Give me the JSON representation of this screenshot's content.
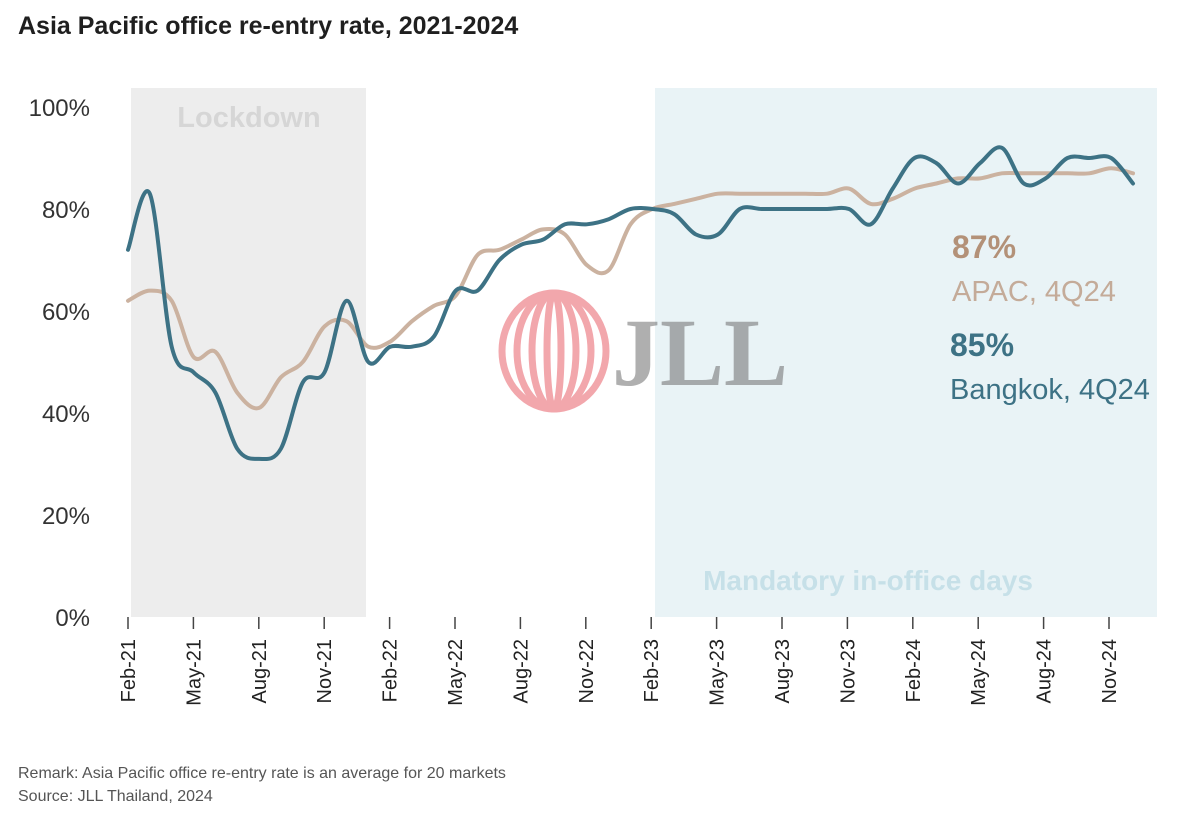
{
  "title": "Asia Pacific office re-entry rate, 2021-2024",
  "remark": "Remark: Asia Pacific office re-entry rate is an average for 20 markets",
  "source": "Source: JLL Thailand, 2024",
  "watermark": "JLL",
  "chart_data": {
    "type": "line",
    "ylim": [
      0,
      100
    ],
    "y_ticks": [
      "0%",
      "20%",
      "40%",
      "60%",
      "80%",
      "100%"
    ],
    "y_tick_values": [
      0,
      20,
      40,
      60,
      80,
      100
    ],
    "x_tick_labels": [
      "Feb-21",
      "May-21",
      "Aug-21",
      "Nov-21",
      "Feb-22",
      "May-22",
      "Aug-22",
      "Nov-22",
      "Feb-23",
      "May-23",
      "Aug-23",
      "Nov-23",
      "Feb-24",
      "May-24",
      "Aug-24",
      "Nov-24"
    ],
    "x_range": [
      "2021-02",
      "2024-12"
    ],
    "grid": false,
    "regions": [
      {
        "label": "Lockdown",
        "start": "2021-02",
        "end": "2022-01",
        "color": "#ededed",
        "label_color": "#d6d6d6"
      },
      {
        "label": "Mandatory in-office days",
        "start": "2023-02",
        "end": "2024-12",
        "color": "#e9f3f6",
        "label_color": "#c6e0e8"
      }
    ],
    "series": [
      {
        "name": "APAC",
        "color": "#cbb2a0",
        "x": [
          "2021-02",
          "2021-03",
          "2021-04",
          "2021-05",
          "2021-06",
          "2021-07",
          "2021-08",
          "2021-09",
          "2021-10",
          "2021-11",
          "2021-12",
          "2022-01",
          "2022-02",
          "2022-03",
          "2022-04",
          "2022-05",
          "2022-06",
          "2022-07",
          "2022-08",
          "2022-09",
          "2022-10",
          "2022-11",
          "2022-12",
          "2023-01",
          "2023-02",
          "2023-03",
          "2023-04",
          "2023-05",
          "2023-06",
          "2023-07",
          "2023-08",
          "2023-09",
          "2023-10",
          "2023-11",
          "2023-12",
          "2024-01",
          "2024-02",
          "2024-03",
          "2024-04",
          "2024-05",
          "2024-06",
          "2024-07",
          "2024-08",
          "2024-09",
          "2024-10",
          "2024-11",
          "2024-12"
        ],
        "y": [
          62,
          64,
          62,
          51,
          52,
          44,
          41,
          47,
          50,
          57,
          58,
          53,
          54,
          58,
          61,
          63,
          71,
          72,
          74,
          76,
          75,
          69,
          68,
          77,
          80,
          81,
          82,
          83,
          83,
          83,
          83,
          83,
          83,
          84,
          81,
          82,
          84,
          85,
          86,
          86,
          87,
          87,
          87,
          87,
          87,
          88,
          87
        ]
      },
      {
        "name": "Bangkok",
        "color": "#3d7285",
        "x": [
          "2021-02",
          "2021-03",
          "2021-04",
          "2021-05",
          "2021-06",
          "2021-07",
          "2021-08",
          "2021-09",
          "2021-10",
          "2021-11",
          "2021-12",
          "2022-01",
          "2022-02",
          "2022-03",
          "2022-04",
          "2022-05",
          "2022-06",
          "2022-07",
          "2022-08",
          "2022-09",
          "2022-10",
          "2022-11",
          "2022-12",
          "2023-01",
          "2023-02",
          "2023-03",
          "2023-04",
          "2023-05",
          "2023-06",
          "2023-07",
          "2023-08",
          "2023-09",
          "2023-10",
          "2023-11",
          "2023-12",
          "2024-01",
          "2024-02",
          "2024-03",
          "2024-04",
          "2024-05",
          "2024-06",
          "2024-07",
          "2024-08",
          "2024-09",
          "2024-10",
          "2024-11",
          "2024-12"
        ],
        "y": [
          72,
          83,
          53,
          48,
          44,
          33,
          31,
          33,
          46,
          48,
          62,
          50,
          53,
          53,
          55,
          64,
          64,
          70,
          73,
          74,
          77,
          77,
          78,
          80,
          80,
          79,
          75,
          75,
          80,
          80,
          80,
          80,
          80,
          80,
          77,
          84,
          90,
          89,
          85,
          89,
          92,
          85,
          86,
          90,
          90,
          90,
          85
        ]
      }
    ],
    "annotations": [
      {
        "value": "87%",
        "label": "APAC, 4Q24",
        "color": "#b39178",
        "label_color": "#c4ab99"
      },
      {
        "value": "85%",
        "label": "Bangkok, 4Q24",
        "color": "#3d7285",
        "label_color": "#3d7285"
      }
    ]
  }
}
